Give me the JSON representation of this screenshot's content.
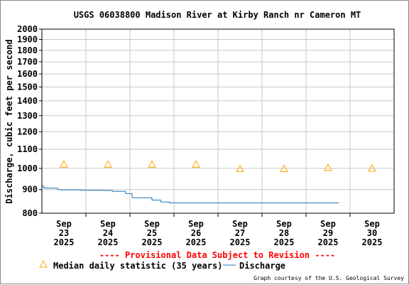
{
  "chart_data": {
    "type": "line",
    "title": "USGS 06038800 Madison River at Kirby Ranch nr Cameron MT",
    "ylabel": "Discharge, cubic feet per second",
    "xlabel": "",
    "y_scale": "log",
    "ylim": [
      800,
      2000
    ],
    "y_ticks": [
      800,
      900,
      1000,
      1100,
      1200,
      1300,
      1400,
      1500,
      1600,
      1700,
      1800,
      1900,
      2000
    ],
    "x_ticks": [
      {
        "month": "Sep",
        "day": "23",
        "year": "2025"
      },
      {
        "month": "Sep",
        "day": "24",
        "year": "2025"
      },
      {
        "month": "Sep",
        "day": "25",
        "year": "2025"
      },
      {
        "month": "Sep",
        "day": "26",
        "year": "2025"
      },
      {
        "month": "Sep",
        "day": "27",
        "year": "2025"
      },
      {
        "month": "Sep",
        "day": "28",
        "year": "2025"
      },
      {
        "month": "Sep",
        "day": "29",
        "year": "2025"
      },
      {
        "month": "Sep",
        "day": "30",
        "year": "2025"
      }
    ],
    "xlim_days": [
      0,
      8
    ],
    "grid": true,
    "series": [
      {
        "name": "Discharge",
        "color": "#1f77b4",
        "x_days": [
          0.0,
          0.03,
          0.06,
          0.2,
          0.35,
          0.36,
          0.45,
          0.6,
          0.8,
          0.9,
          1.0,
          1.2,
          1.4,
          1.6,
          1.9,
          2.05,
          2.3,
          2.5,
          2.7,
          2.9,
          3.2,
          3.5,
          4.0,
          4.5,
          5.0,
          5.5,
          6.0,
          6.5,
          6.75
        ],
        "values": [
          918,
          910,
          906,
          906,
          905,
          900,
          898,
          898,
          898,
          897,
          897,
          897,
          896,
          892,
          882,
          864,
          864,
          854,
          846,
          842,
          842,
          842,
          842,
          842,
          842,
          842,
          842,
          842,
          842
        ]
      }
    ],
    "median_daily": {
      "name": "Median daily statistic (35 years)",
      "marker": "triangle",
      "color": "#ffa500",
      "x_days": [
        0.5,
        1.5,
        2.5,
        3.5,
        4.5,
        5.5,
        6.5,
        7.5
      ],
      "values": [
        1020,
        1020,
        1020,
        1020,
        998,
        998,
        1003,
        1000
      ]
    }
  },
  "notice": "---- Provisional Data Subject to Revision ----",
  "notice_color": "#ff0000",
  "legend": {
    "median_label": "Median daily statistic (35 years)",
    "discharge_label": "Discharge"
  },
  "credit": "Graph courtesy of the U.S. Geological Survey"
}
